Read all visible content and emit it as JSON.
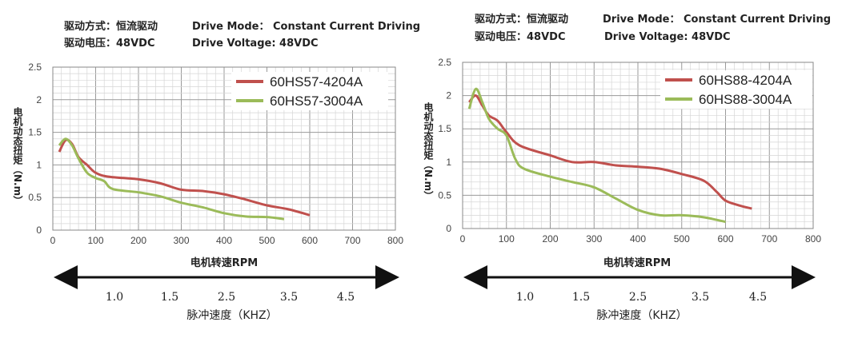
{
  "header": {
    "left": {
      "line1_cn": "驱动方式：恒流驱动",
      "line1_en": "Drive Mode： Constant Current Driving",
      "line2_cn": "驱动电压：48VDC",
      "line2_en": "Drive Voltage: 48VDC"
    },
    "right": {
      "line1_cn": "驱动方式：恒流驱动",
      "line1_en": "Drive Mode： Constant Current Driving",
      "line2_cn": "驱动电压：48VDC",
      "line2_en": "Drive Voltage: 48VDC"
    }
  },
  "speed_axis": {
    "label": "脉冲速度（KHZ）",
    "ticks": [
      "1.0",
      "1.5",
      "2.5",
      "3.5",
      "4.5"
    ]
  },
  "chart_data": [
    {
      "type": "line",
      "xlabel": "电机转速RPM",
      "ylabel": "电机动态扭矩（N.m）",
      "xlim": [
        0,
        800
      ],
      "ylim": [
        0,
        2.5
      ],
      "xticks": [
        0,
        100,
        200,
        300,
        400,
        500,
        600,
        700,
        800
      ],
      "yticks": [
        0,
        0.5,
        1,
        1.5,
        2,
        2.5
      ],
      "grid": true,
      "legend_position": "top-right",
      "series": [
        {
          "name": "60HS57-4204A",
          "color": "#c0504d",
          "x": [
            15,
            30,
            45,
            60,
            80,
            100,
            130,
            200,
            250,
            300,
            350,
            400,
            450,
            500,
            550,
            600
          ],
          "y": [
            1.2,
            1.38,
            1.32,
            1.12,
            1.0,
            0.88,
            0.82,
            0.78,
            0.72,
            0.62,
            0.6,
            0.55,
            0.47,
            0.38,
            0.32,
            0.23
          ]
        },
        {
          "name": "60HS57-3004A",
          "color": "#9bbb59",
          "x": [
            15,
            30,
            45,
            60,
            80,
            100,
            120,
            140,
            200,
            250,
            300,
            350,
            400,
            450,
            500,
            540
          ],
          "y": [
            1.3,
            1.4,
            1.3,
            1.1,
            0.88,
            0.8,
            0.75,
            0.63,
            0.58,
            0.52,
            0.42,
            0.35,
            0.26,
            0.21,
            0.2,
            0.17
          ]
        }
      ]
    },
    {
      "type": "line",
      "xlabel": "电机转速RPM",
      "ylabel": "电机动态扭矩（N.m）",
      "xlim": [
        0,
        800
      ],
      "ylim": [
        0,
        2.5
      ],
      "xticks": [
        0,
        100,
        200,
        300,
        400,
        500,
        600,
        700,
        800
      ],
      "yticks": [
        0,
        0.5,
        1,
        1.5,
        2,
        2.5
      ],
      "grid": true,
      "legend_position": "top-right",
      "series": [
        {
          "name": "60HS88-4204A",
          "color": "#c0504d",
          "x": [
            15,
            30,
            45,
            60,
            80,
            100,
            130,
            200,
            250,
            300,
            350,
            400,
            450,
            500,
            550,
            580,
            600,
            630,
            660
          ],
          "y": [
            1.9,
            2.0,
            1.85,
            1.7,
            1.62,
            1.45,
            1.25,
            1.1,
            1.0,
            1.0,
            0.95,
            0.93,
            0.9,
            0.82,
            0.72,
            0.55,
            0.42,
            0.35,
            0.3
          ]
        },
        {
          "name": "60HS88-3004A",
          "color": "#9bbb59",
          "x": [
            15,
            30,
            45,
            60,
            80,
            100,
            120,
            140,
            200,
            250,
            300,
            350,
            400,
            450,
            500,
            550,
            600
          ],
          "y": [
            1.8,
            2.1,
            1.9,
            1.65,
            1.5,
            1.4,
            1.05,
            0.9,
            0.78,
            0.7,
            0.62,
            0.45,
            0.28,
            0.2,
            0.2,
            0.17,
            0.1
          ]
        }
      ]
    }
  ]
}
